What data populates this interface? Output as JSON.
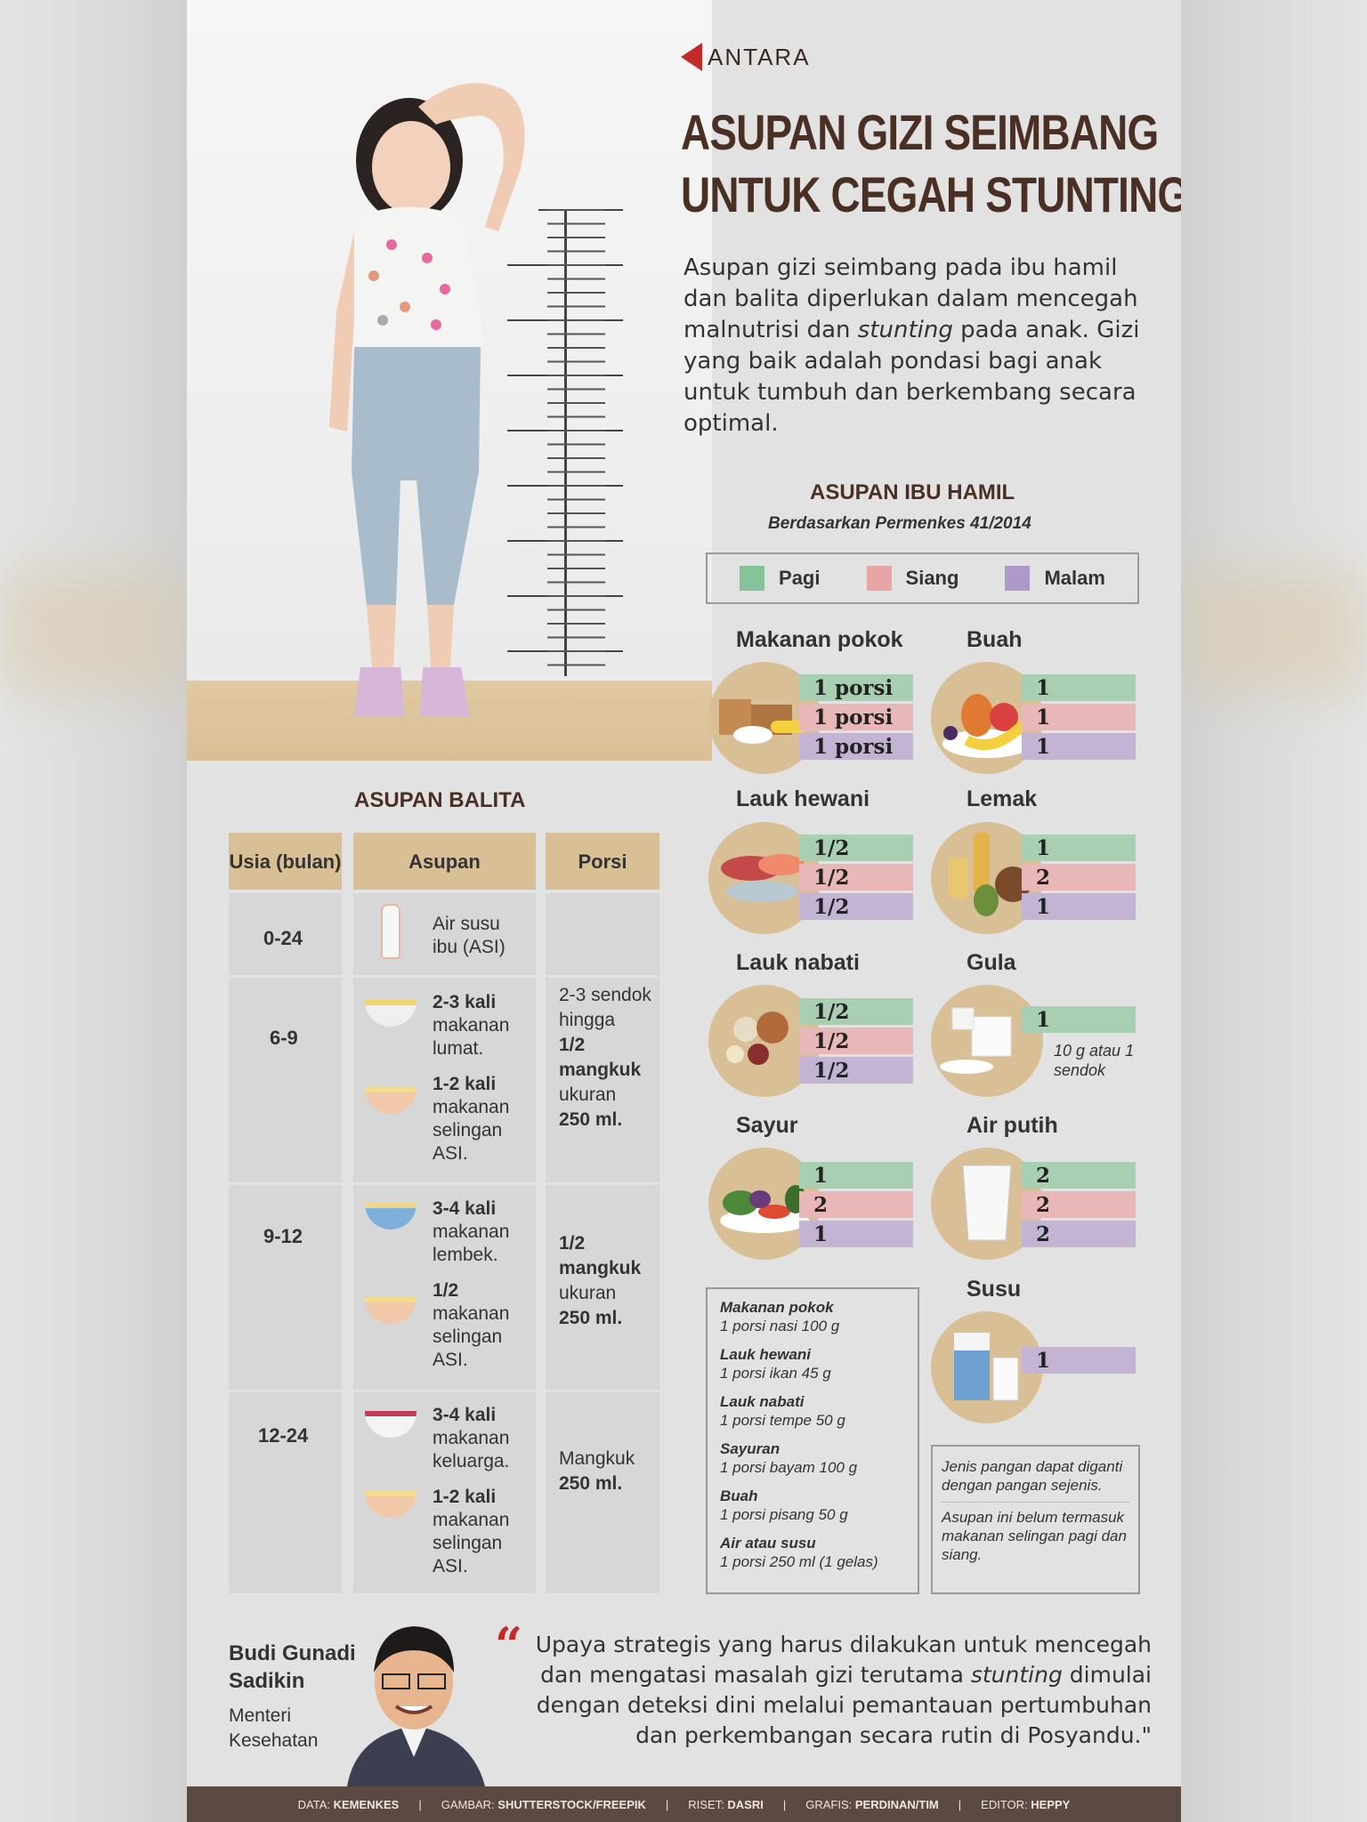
{
  "brand": {
    "logo_text": "ANTARA"
  },
  "title": {
    "line1": "ASUPAN GIZI SEIMBANG",
    "line2": "UNTUK CEGAH STUNTING"
  },
  "intro": {
    "part1": "Asupan gizi seimbang pada ibu hamil dan balita diperlukan dalam mencegah malnutrisi dan ",
    "emph": "stunting",
    "part2": " pada anak. Gizi yang baik adalah pondasi bagi anak untuk tumbuh dan berkembang secara optimal."
  },
  "ibu_hamil": {
    "title": "ASUPAN IBU HAMIL",
    "subtitle": "Berdasarkan Permenkes 41/2014",
    "legend": [
      {
        "label": "Pagi",
        "color": "#86c39a"
      },
      {
        "label": "Siang",
        "color": "#e8a5a5"
      },
      {
        "label": "Malam",
        "color": "#ad9acb"
      }
    ],
    "items": [
      {
        "name": "Makanan pokok",
        "values": [
          "1 porsi",
          "1 porsi",
          "1 porsi"
        ]
      },
      {
        "name": "Buah",
        "values": [
          "1",
          "1",
          "1"
        ]
      },
      {
        "name": "Lauk hewani",
        "values": [
          "1/2",
          "1/2",
          "1/2"
        ]
      },
      {
        "name": "Lemak",
        "values": [
          "1",
          "2",
          "1"
        ]
      },
      {
        "name": "Lauk nabati",
        "values": [
          "1/2",
          "1/2",
          "1/2"
        ]
      },
      {
        "name": "Gula",
        "values": [
          "1"
        ],
        "note": "10 g atau 1 sendok"
      },
      {
        "name": "Sayur",
        "values": [
          "1",
          "2",
          "1"
        ]
      },
      {
        "name": "Air putih",
        "values": [
          "2",
          "2",
          "2"
        ]
      },
      {
        "name": "Susu",
        "values": [
          "1"
        ]
      }
    ],
    "portions": [
      {
        "label": "Makanan pokok",
        "value": "1 porsi nasi 100 g"
      },
      {
        "label": "Lauk hewani",
        "value": "1 porsi ikan 45 g"
      },
      {
        "label": "Lauk nabati",
        "value": "1 porsi tempe 50 g"
      },
      {
        "label": "Sayuran",
        "value": "1 porsi bayam 100 g"
      },
      {
        "label": "Buah",
        "value": "1 porsi pisang 50 g"
      },
      {
        "label": "Air atau susu",
        "value": "1 porsi 250 ml (1 gelas)"
      }
    ],
    "notes": [
      "Jenis pangan dapat diganti dengan pangan sejenis.",
      "Asupan ini belum termasuk makanan selingan pagi dan siang."
    ]
  },
  "balita": {
    "title": "ASUPAN BALITA",
    "headers": {
      "usia": "Usia (bulan)",
      "asupan": "Asupan",
      "porsi": "Porsi"
    },
    "rows": [
      {
        "age": "0-24",
        "asupan": [
          {
            "bold": "",
            "text": "Air susu ibu (ASI)"
          }
        ],
        "porsi": ""
      },
      {
        "age": "6-9",
        "asupan": [
          {
            "bold": "2-3 kali",
            "text": "makanan lumat."
          },
          {
            "bold": "1-2 kali",
            "text": "makanan selingan ASI."
          }
        ],
        "porsi_plain1": "2-3 sendok hingga",
        "porsi_bold1": "1/2 mangkuk",
        "porsi_plain2": "ukuran",
        "porsi_bold2": "250 ml."
      },
      {
        "age": "9-12",
        "asupan": [
          {
            "bold": "3-4 kali",
            "text": "makanan lembek."
          },
          {
            "bold": "1/2",
            "text": "makanan selingan ASI."
          }
        ],
        "porsi_bold1": "1/2 mangkuk",
        "porsi_plain2": "ukuran",
        "porsi_bold2": "250 ml."
      },
      {
        "age": "12-24",
        "asupan": [
          {
            "bold": "3-4 kali",
            "text": "makanan keluarga."
          },
          {
            "bold": "1-2 kali",
            "text": "makanan selingan ASI."
          }
        ],
        "porsi_plain1": "Mangkuk",
        "porsi_bold2": "250 ml."
      }
    ]
  },
  "quote": {
    "name": "Budi Gunadi Sadikin",
    "role": "Menteri Kesehatan",
    "text1": "Upaya strategis yang harus dilakukan untuk mencegah dan mengatasi masalah gizi terutama ",
    "emph": "stunting",
    "text2": " dimulai dengan deteksi dini melalui pemantauan pertumbuhan dan perkembangan secara rutin di Posyandu.\""
  },
  "footer": [
    {
      "label": "DATA:",
      "value": "KEMENKES"
    },
    {
      "label": "GAMBAR:",
      "value": "SHUTTERSTOCK/FREEPIK"
    },
    {
      "label": "RISET:",
      "value": "DASRI"
    },
    {
      "label": "GRAFIS:",
      "value": "PERDINAN/TIM"
    },
    {
      "label": "EDITOR:",
      "value": "HEPPY"
    }
  ],
  "colors": {
    "accent_red": "#c42a2a",
    "title_brown": "#4a2f24",
    "tan": "#d9bf96",
    "footer_bg": "#5b4a43"
  }
}
